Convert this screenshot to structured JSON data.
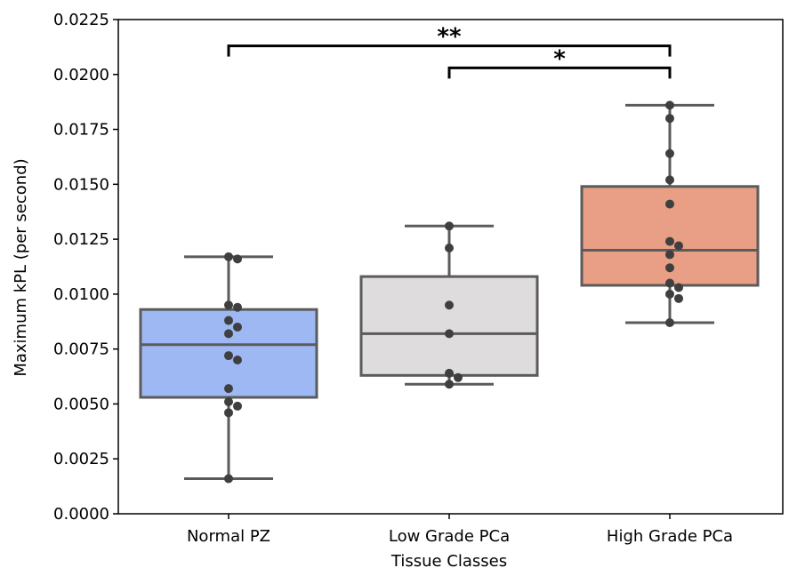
{
  "chart_data": {
    "type": "box",
    "title": "",
    "xlabel": "Tissue Classes",
    "ylabel": "Maximum kPL (per second)",
    "ylim": [
      0,
      0.0225
    ],
    "yticks": [
      "0.0000",
      "0.0025",
      "0.0050",
      "0.0075",
      "0.0100",
      "0.0125",
      "0.0150",
      "0.0175",
      "0.0200",
      "0.0225"
    ],
    "grid": false,
    "categories": [
      "Normal PZ",
      "Low Grade PCa",
      "High Grade PCa"
    ],
    "boxes": [
      {
        "category": "Normal PZ",
        "color": "#9db8f2",
        "whisker_low": 0.0016,
        "q1": 0.0053,
        "median": 0.0077,
        "q3": 0.0093,
        "whisker_high": 0.0117,
        "points": [
          0.0117,
          0.0116,
          0.0095,
          0.0094,
          0.0088,
          0.0085,
          0.0082,
          0.0072,
          0.007,
          0.0057,
          0.0051,
          0.0049,
          0.0046,
          0.0016
        ]
      },
      {
        "category": "Low Grade PCa",
        "color": "#dedcdc",
        "whisker_low": 0.0059,
        "q1": 0.0063,
        "median": 0.0082,
        "q3": 0.0108,
        "whisker_high": 0.0131,
        "points": [
          0.0131,
          0.0121,
          0.0095,
          0.0082,
          0.0064,
          0.0062,
          0.0059
        ]
      },
      {
        "category": "High Grade PCa",
        "color": "#e89f86",
        "whisker_low": 0.0087,
        "q1": 0.0104,
        "median": 0.012,
        "q3": 0.0149,
        "whisker_high": 0.0186,
        "points": [
          0.0186,
          0.018,
          0.0164,
          0.0152,
          0.0141,
          0.0124,
          0.0122,
          0.0118,
          0.0112,
          0.0105,
          0.0103,
          0.01,
          0.0098,
          0.0087
        ]
      }
    ],
    "significance": [
      {
        "from": "Normal PZ",
        "to": "High Grade PCa",
        "label": "**",
        "level": 0.0213
      },
      {
        "from": "Low Grade PCa",
        "to": "High Grade PCa",
        "label": "*",
        "level": 0.0203
      }
    ]
  }
}
